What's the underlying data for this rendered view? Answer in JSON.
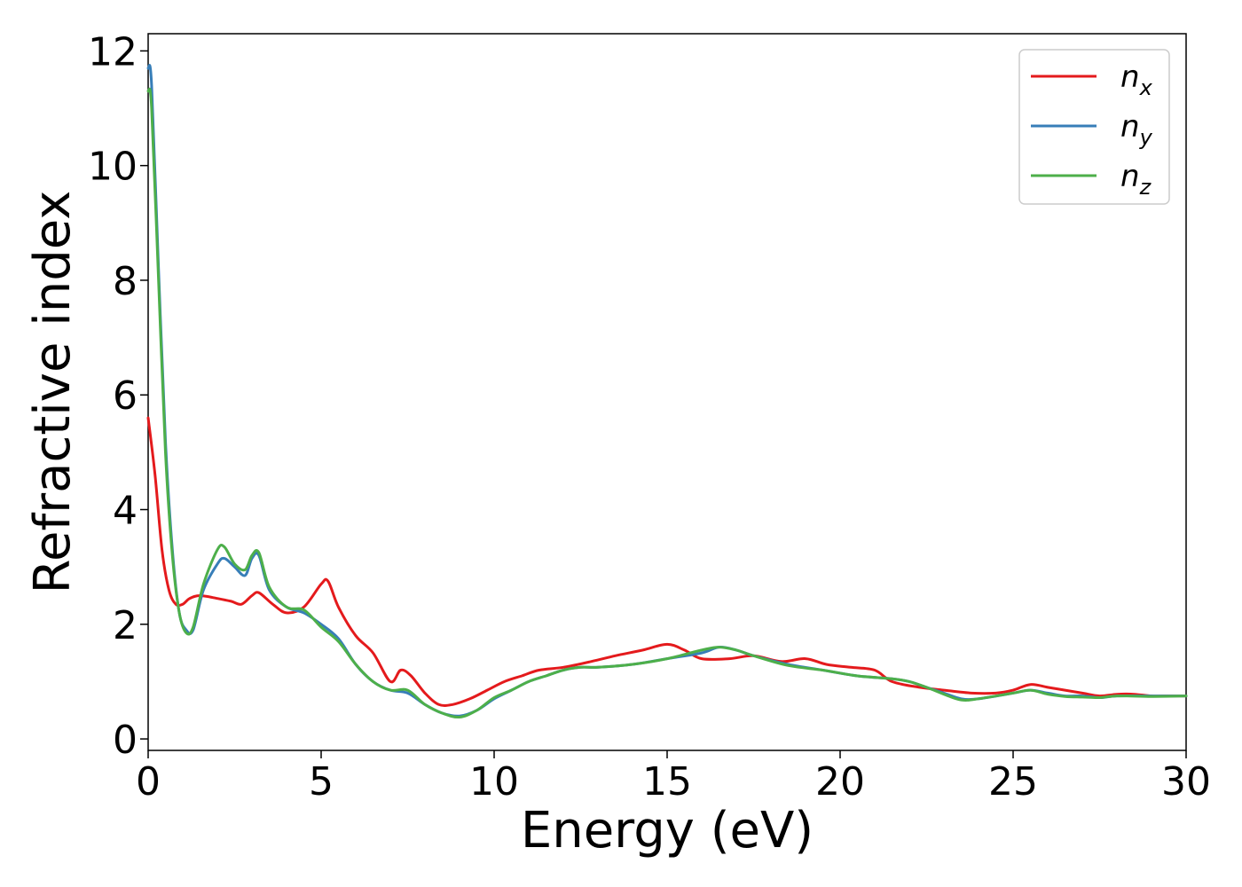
{
  "chart_data": {
    "type": "line",
    "xlabel": "Energy (eV)",
    "ylabel": "Refractive index",
    "xlim": [
      0,
      30
    ],
    "ylim": [
      -0.2,
      12.3
    ],
    "xticks": [
      "0",
      "5",
      "10",
      "15",
      "20",
      "25",
      "30"
    ],
    "yticks": [
      "0",
      "2",
      "4",
      "6",
      "8",
      "10",
      "12"
    ],
    "grid": false,
    "legend_position": "top-right",
    "series": [
      {
        "name": "n",
        "subscript": "x",
        "color": "#e41a1c",
        "x": [
          0,
          0.2,
          0.4,
          0.6,
          0.8,
          1.0,
          1.2,
          1.5,
          2.0,
          2.4,
          2.7,
          3.0,
          3.2,
          3.6,
          4.0,
          4.5,
          5.0,
          5.2,
          5.5,
          6.0,
          6.5,
          7.0,
          7.3,
          7.6,
          8.0,
          8.4,
          8.8,
          9.3,
          9.8,
          10.3,
          10.8,
          11.3,
          12.0,
          12.8,
          13.5,
          14.3,
          15.0,
          15.5,
          16.0,
          16.8,
          17.5,
          18.3,
          19.0,
          19.6,
          20.3,
          21.0,
          21.5,
          22.3,
          23.0,
          23.8,
          24.5,
          25.0,
          25.5,
          26.0,
          26.5,
          27.0,
          27.5,
          28.0,
          28.5,
          29.0,
          29.5,
          30.0
        ],
        "y": [
          5.6,
          4.6,
          3.3,
          2.6,
          2.35,
          2.35,
          2.45,
          2.5,
          2.45,
          2.4,
          2.35,
          2.5,
          2.55,
          2.35,
          2.2,
          2.3,
          2.7,
          2.75,
          2.3,
          1.8,
          1.5,
          1.0,
          1.2,
          1.1,
          0.8,
          0.6,
          0.6,
          0.7,
          0.85,
          1.0,
          1.1,
          1.2,
          1.25,
          1.35,
          1.45,
          1.55,
          1.65,
          1.55,
          1.4,
          1.4,
          1.45,
          1.35,
          1.4,
          1.3,
          1.25,
          1.2,
          1.0,
          0.9,
          0.85,
          0.8,
          0.8,
          0.85,
          0.95,
          0.9,
          0.85,
          0.8,
          0.75,
          0.78,
          0.78,
          0.75,
          0.75,
          0.75
        ]
      },
      {
        "name": "n",
        "subscript": "y",
        "color": "#377eb8",
        "x": [
          0,
          0.1,
          0.3,
          0.5,
          0.7,
          0.9,
          1.1,
          1.3,
          1.6,
          2.0,
          2.2,
          2.5,
          2.8,
          3.0,
          3.2,
          3.5,
          4.0,
          4.5,
          5.0,
          5.5,
          6.0,
          6.5,
          7.0,
          7.5,
          8.0,
          8.5,
          9.0,
          9.5,
          10.0,
          10.5,
          11.0,
          11.5,
          12.0,
          12.5,
          13.0,
          14.0,
          15.0,
          16.0,
          16.5,
          17.0,
          17.5,
          18.5,
          19.5,
          20.5,
          21.5,
          22.0,
          22.5,
          23.0,
          23.5,
          24.0,
          25.0,
          25.5,
          26.0,
          26.5,
          27.0,
          27.5,
          28.0,
          29.0,
          30.0
        ],
        "y": [
          11.7,
          11.4,
          8.2,
          5.2,
          3.3,
          2.2,
          1.9,
          1.9,
          2.6,
          3.05,
          3.15,
          3.0,
          2.85,
          3.15,
          3.2,
          2.6,
          2.3,
          2.2,
          2.0,
          1.75,
          1.3,
          1.0,
          0.85,
          0.8,
          0.6,
          0.45,
          0.4,
          0.5,
          0.7,
          0.85,
          1.0,
          1.1,
          1.2,
          1.25,
          1.25,
          1.3,
          1.4,
          1.5,
          1.6,
          1.55,
          1.45,
          1.3,
          1.2,
          1.1,
          1.05,
          1.0,
          0.9,
          0.8,
          0.7,
          0.7,
          0.8,
          0.85,
          0.8,
          0.75,
          0.75,
          0.72,
          0.75,
          0.75,
          0.75
        ]
      },
      {
        "name": "n",
        "subscript": "z",
        "color": "#4daf4a",
        "x": [
          0,
          0.1,
          0.3,
          0.5,
          0.7,
          0.9,
          1.1,
          1.3,
          1.6,
          2.0,
          2.2,
          2.5,
          2.8,
          3.0,
          3.2,
          3.5,
          4.0,
          4.5,
          5.0,
          5.5,
          6.0,
          6.5,
          7.0,
          7.5,
          8.0,
          8.5,
          9.0,
          9.5,
          10.0,
          10.5,
          11.0,
          11.5,
          12.0,
          12.5,
          13.0,
          14.0,
          15.0,
          16.0,
          16.5,
          17.0,
          17.5,
          18.5,
          19.5,
          20.5,
          21.5,
          22.0,
          22.5,
          23.0,
          23.5,
          24.0,
          25.0,
          25.5,
          26.0,
          26.5,
          27.0,
          27.5,
          28.0,
          29.0,
          30.0
        ],
        "y": [
          11.3,
          11.0,
          8.0,
          5.0,
          3.2,
          2.2,
          1.85,
          1.95,
          2.7,
          3.3,
          3.35,
          3.05,
          2.95,
          3.2,
          3.25,
          2.65,
          2.3,
          2.25,
          1.95,
          1.7,
          1.3,
          1.0,
          0.85,
          0.85,
          0.6,
          0.45,
          0.38,
          0.5,
          0.72,
          0.85,
          1.0,
          1.1,
          1.2,
          1.25,
          1.25,
          1.3,
          1.4,
          1.55,
          1.6,
          1.55,
          1.45,
          1.28,
          1.2,
          1.1,
          1.05,
          1.0,
          0.9,
          0.78,
          0.68,
          0.7,
          0.8,
          0.85,
          0.78,
          0.74,
          0.73,
          0.72,
          0.75,
          0.74,
          0.75
        ]
      }
    ]
  }
}
